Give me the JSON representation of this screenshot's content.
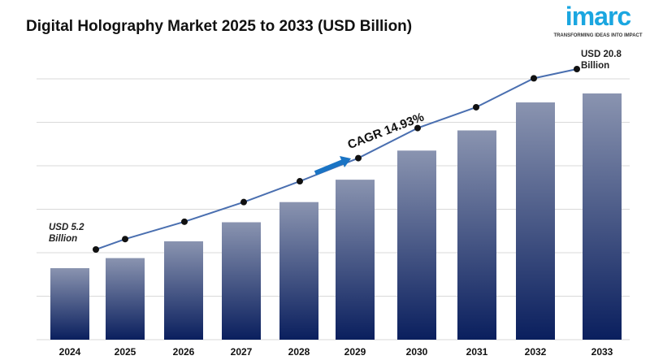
{
  "title": "Digital Holography Market 2025 to 2033 (USD Billion)",
  "logo": {
    "word": "imarc",
    "tagline": "TRANSFORMING IDEAS INTO IMPACT",
    "color": "#1aa6e0"
  },
  "chart_data": {
    "type": "bar",
    "title": "Digital Holography Market 2025 to 2033 (USD Billion)",
    "categories": [
      "2024",
      "2025",
      "2026",
      "2027",
      "2028",
      "2029",
      "2030",
      "2031",
      "2032",
      "2033"
    ],
    "values": [
      5.2,
      6.1,
      7.6,
      9.3,
      11.1,
      13.1,
      15.7,
      17.5,
      20.0,
      20.8
    ],
    "trend_line": true,
    "grid": true,
    "annotations": {
      "start": {
        "line1": "USD 5.2",
        "line2": "Billion"
      },
      "end": {
        "line1": "USD 20.8",
        "line2": "Billion"
      },
      "cagr": "CAGR 14.93%"
    },
    "colors": {
      "bar_top": "#8a94b0",
      "bar_bottom": "#0a1f5e",
      "line": "#4a6fb0",
      "arrow": "#1a74c4"
    }
  }
}
